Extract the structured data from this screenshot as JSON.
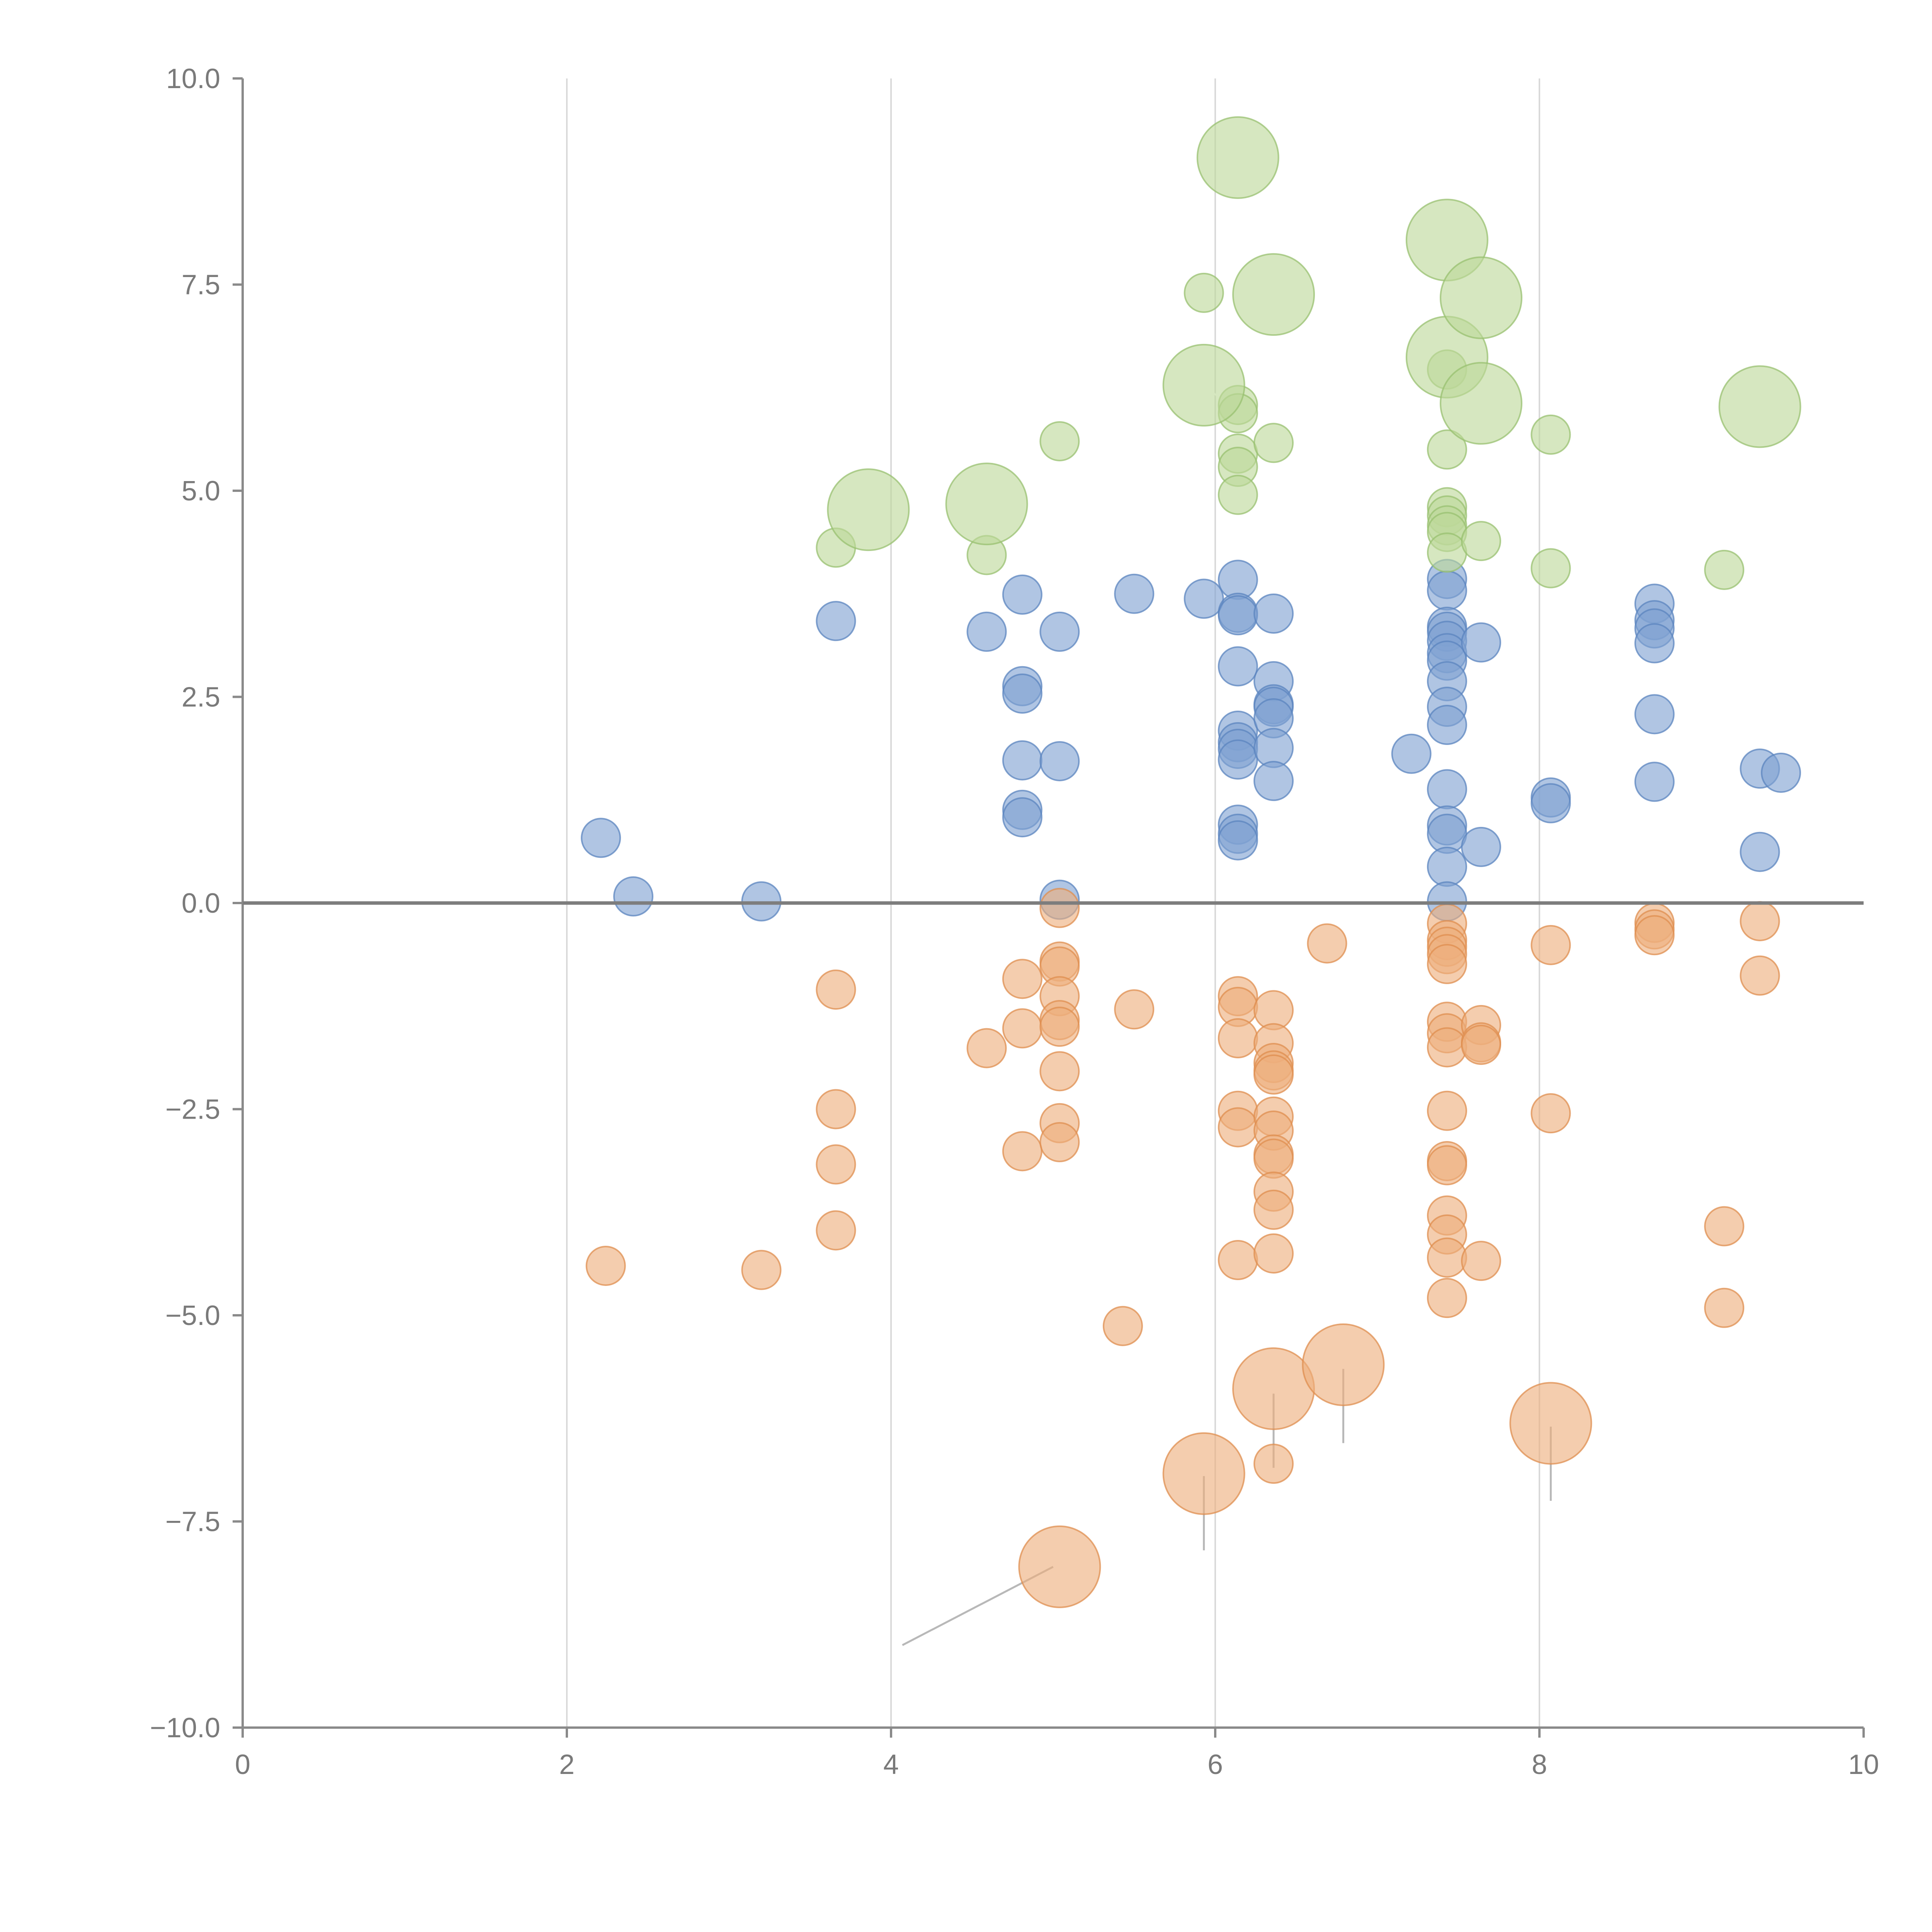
{
  "chart_data": {
    "type": "scatter",
    "title": "",
    "xlabel": "",
    "ylabel": "",
    "xlim": [
      0,
      10
    ],
    "ylim": [
      -10,
      10
    ],
    "x_ticks": [
      0,
      2,
      4,
      6,
      8,
      10
    ],
    "y_ticks": [
      10,
      7.5,
      5,
      2.5,
      0,
      -2.5,
      -5,
      -7.5,
      -10
    ],
    "x_tick_labels": [
      "0",
      "2",
      "4",
      "6",
      "8",
      "10"
    ],
    "y_tick_labels": [
      "10.0",
      "7.5",
      "5.0",
      "2.5",
      "0.0",
      "−2.5",
      "−5.0",
      "−7.5",
      "−10.0"
    ],
    "vertical_grid_at": [
      2,
      4,
      6,
      8
    ],
    "reference_line_y": 0,
    "legend": "none",
    "series": [
      {
        "name": "blue",
        "color": "#7fa2d2",
        "stroke": "#5b84bf",
        "points": [
          [
            2.21,
            0.79,
            1
          ],
          [
            2.41,
            0.08,
            1
          ],
          [
            3.2,
            0.02,
            1
          ],
          [
            3.66,
            3.42,
            1
          ],
          [
            4.59,
            3.29,
            1
          ],
          [
            4.81,
            3.74,
            1
          ],
          [
            4.81,
            2.63,
            1
          ],
          [
            4.81,
            2.54,
            1
          ],
          [
            4.81,
            1.73,
            1
          ],
          [
            4.81,
            1.13,
            1
          ],
          [
            4.81,
            1.04,
            1
          ],
          [
            5.04,
            3.29,
            1
          ],
          [
            5.04,
            1.72,
            1
          ],
          [
            5.04,
            0.04,
            1
          ],
          [
            5.5,
            3.75,
            1
          ],
          [
            5.93,
            3.69,
            1
          ],
          [
            6.14,
            3.92,
            1
          ],
          [
            6.14,
            3.52,
            1
          ],
          [
            6.14,
            3.49,
            1
          ],
          [
            6.14,
            2.87,
            1
          ],
          [
            6.14,
            2.09,
            1
          ],
          [
            6.14,
            1.95,
            1
          ],
          [
            6.14,
            1.87,
            1
          ],
          [
            6.14,
            1.74,
            1
          ],
          [
            6.14,
            0.95,
            1
          ],
          [
            6.14,
            0.84,
            1
          ],
          [
            6.14,
            0.76,
            1
          ],
          [
            6.36,
            3.51,
            1
          ],
          [
            6.36,
            2.69,
            1
          ],
          [
            6.36,
            2.41,
            1
          ],
          [
            6.36,
            2.38,
            1
          ],
          [
            6.36,
            2.24,
            1
          ],
          [
            6.36,
            1.88,
            1
          ],
          [
            6.36,
            1.48,
            1
          ],
          [
            7.21,
            1.81,
            1
          ],
          [
            7.43,
            3.93,
            1
          ],
          [
            7.43,
            3.79,
            1
          ],
          [
            7.43,
            3.35,
            1
          ],
          [
            7.43,
            3.29,
            1
          ],
          [
            7.43,
            3.18,
            1
          ],
          [
            7.43,
            3.03,
            1
          ],
          [
            7.43,
            2.94,
            1
          ],
          [
            7.43,
            2.69,
            1
          ],
          [
            7.43,
            2.38,
            1
          ],
          [
            7.43,
            2.16,
            1
          ],
          [
            7.43,
            1.38,
            1
          ],
          [
            7.43,
            0.94,
            1
          ],
          [
            7.43,
            0.84,
            1
          ],
          [
            7.43,
            0.44,
            1
          ],
          [
            7.43,
            0.02,
            1
          ],
          [
            7.64,
            3.16,
            1
          ],
          [
            7.64,
            0.68,
            1
          ],
          [
            8.07,
            1.28,
            1
          ],
          [
            8.07,
            1.21,
            1
          ],
          [
            8.71,
            3.63,
            1
          ],
          [
            8.71,
            3.43,
            1
          ],
          [
            8.71,
            3.33,
            1
          ],
          [
            8.71,
            3.15,
            1
          ],
          [
            8.71,
            2.29,
            1
          ],
          [
            8.71,
            1.47,
            1
          ],
          [
            9.36,
            1.63,
            1
          ],
          [
            9.36,
            0.62,
            1
          ],
          [
            9.49,
            1.58,
            1
          ]
        ]
      },
      {
        "name": "orange",
        "color": "#edae7c",
        "stroke": "#df8d4f",
        "points": [
          [
            2.24,
            -4.4,
            1
          ],
          [
            3.2,
            -4.45,
            1
          ],
          [
            3.66,
            -1.05,
            1
          ],
          [
            3.66,
            -2.5,
            1
          ],
          [
            3.66,
            -3.17,
            1
          ],
          [
            3.66,
            -3.97,
            1
          ],
          [
            4.59,
            -1.76,
            1
          ],
          [
            4.81,
            -0.92,
            1
          ],
          [
            4.81,
            -1.52,
            1
          ],
          [
            4.81,
            -3.01,
            1
          ],
          [
            5.04,
            -0.06,
            1
          ],
          [
            5.04,
            -0.71,
            1
          ],
          [
            5.04,
            -0.77,
            1
          ],
          [
            5.04,
            -1.13,
            1
          ],
          [
            5.04,
            -1.42,
            1
          ],
          [
            5.04,
            -1.5,
            1
          ],
          [
            5.04,
            -2.04,
            1
          ],
          [
            5.04,
            -2.67,
            1
          ],
          [
            5.04,
            -2.9,
            1
          ],
          [
            5.5,
            -1.29,
            1
          ],
          [
            5.43,
            -5.13,
            1
          ],
          [
            6.14,
            -1.13,
            1
          ],
          [
            6.14,
            -1.26,
            1
          ],
          [
            6.14,
            -1.64,
            1
          ],
          [
            6.14,
            -2.52,
            1
          ],
          [
            6.14,
            -2.72,
            1
          ],
          [
            6.14,
            -4.33,
            1
          ],
          [
            6.36,
            -1.3,
            1
          ],
          [
            6.36,
            -1.7,
            1
          ],
          [
            6.36,
            -1.94,
            1
          ],
          [
            6.36,
            -2.03,
            1
          ],
          [
            6.36,
            -2.08,
            1
          ],
          [
            6.36,
            -2.59,
            1
          ],
          [
            6.36,
            -2.76,
            1
          ],
          [
            6.36,
            -3.05,
            1
          ],
          [
            6.36,
            -3.1,
            1
          ],
          [
            6.36,
            -3.5,
            1
          ],
          [
            6.36,
            -3.72,
            1
          ],
          [
            6.36,
            -4.25,
            1
          ],
          [
            6.36,
            -6.8,
            1
          ],
          [
            6.69,
            -0.49,
            1
          ],
          [
            7.43,
            -0.25,
            1
          ],
          [
            7.43,
            -0.45,
            1
          ],
          [
            7.43,
            -0.53,
            1
          ],
          [
            7.43,
            -0.62,
            1
          ],
          [
            7.43,
            -0.74,
            1
          ],
          [
            7.43,
            -1.44,
            1
          ],
          [
            7.43,
            -1.58,
            1
          ],
          [
            7.43,
            -1.75,
            1
          ],
          [
            7.43,
            -2.52,
            1
          ],
          [
            7.43,
            -3.13,
            1
          ],
          [
            7.43,
            -3.18,
            1
          ],
          [
            7.43,
            -3.79,
            1
          ],
          [
            7.43,
            -4.02,
            1
          ],
          [
            7.43,
            -4.3,
            1
          ],
          [
            7.43,
            -4.79,
            1
          ],
          [
            7.64,
            -1.48,
            1
          ],
          [
            7.64,
            -1.69,
            1
          ],
          [
            7.64,
            -1.72,
            1
          ],
          [
            7.64,
            -4.34,
            1
          ],
          [
            8.07,
            -0.51,
            1
          ],
          [
            8.07,
            -2.55,
            1
          ],
          [
            8.71,
            -0.24,
            1
          ],
          [
            8.71,
            -0.32,
            1
          ],
          [
            8.71,
            -0.39,
            1
          ],
          [
            9.14,
            -3.92,
            1
          ],
          [
            9.14,
            -4.91,
            1
          ],
          [
            9.36,
            -0.22,
            1
          ],
          [
            9.36,
            -0.88,
            1
          ],
          [
            5.04,
            -8.05,
            2.1
          ],
          [
            5.93,
            -6.92,
            2.1
          ],
          [
            6.36,
            -5.89,
            2.1
          ],
          [
            6.79,
            -5.6,
            2.1
          ],
          [
            8.07,
            -6.31,
            2.1
          ]
        ]
      },
      {
        "name": "green",
        "color": "#bdd89a",
        "stroke": "#98c070",
        "points": [
          [
            3.66,
            4.31,
            1
          ],
          [
            4.59,
            4.22,
            1
          ],
          [
            5.04,
            5.6,
            1
          ],
          [
            5.93,
            7.4,
            1
          ],
          [
            6.14,
            6.04,
            1
          ],
          [
            6.14,
            5.94,
            1
          ],
          [
            6.14,
            5.45,
            1
          ],
          [
            6.14,
            5.29,
            1
          ],
          [
            6.14,
            4.95,
            1
          ],
          [
            6.36,
            5.58,
            1
          ],
          [
            7.43,
            6.47,
            1
          ],
          [
            7.43,
            5.5,
            1
          ],
          [
            7.43,
            4.8,
            1
          ],
          [
            7.43,
            4.7,
            1
          ],
          [
            7.43,
            4.58,
            1
          ],
          [
            7.43,
            4.5,
            1
          ],
          [
            7.43,
            4.25,
            1
          ],
          [
            7.64,
            4.39,
            1
          ],
          [
            8.07,
            5.68,
            1
          ],
          [
            8.07,
            4.06,
            1
          ],
          [
            9.14,
            4.04,
            1
          ],
          [
            3.86,
            4.77,
            2.1
          ],
          [
            4.59,
            4.84,
            2.1
          ],
          [
            5.93,
            6.28,
            2.1
          ],
          [
            6.14,
            9.04,
            2.1
          ],
          [
            6.36,
            7.38,
            2.1
          ],
          [
            7.43,
            8.04,
            2.1
          ],
          [
            7.43,
            6.62,
            2.1
          ],
          [
            7.64,
            7.34,
            2.1
          ],
          [
            7.64,
            6.06,
            2.1
          ],
          [
            9.36,
            6.02,
            2.1
          ]
        ]
      }
    ],
    "connectors": [
      {
        "color": "light",
        "from": [
          5.0,
          -8.05
        ],
        "to": [
          4.07,
          -9.0
        ]
      },
      {
        "color": "light",
        "from": [
          5.93,
          -6.95
        ],
        "to": [
          5.93,
          -7.85
        ]
      },
      {
        "color": "light",
        "from": [
          6.36,
          -5.95
        ],
        "to": [
          6.36,
          -6.85
        ]
      },
      {
        "color": "light",
        "from": [
          6.79,
          -5.65
        ],
        "to": [
          6.79,
          -6.55
        ]
      },
      {
        "color": "light",
        "from": [
          8.07,
          -6.35
        ],
        "to": [
          8.07,
          -7.25
        ]
      },
      {
        "color": "white",
        "from": [
          3.9,
          4.85
        ],
        "to": [
          3.81,
          4.5
        ]
      },
      {
        "color": "white",
        "from": [
          4.62,
          4.84
        ],
        "to": [
          4.82,
          4.82
        ]
      },
      {
        "color": "white",
        "from": [
          5.96,
          6.22
        ],
        "to": [
          6.17,
          5.95
        ]
      },
      {
        "color": "white",
        "from": [
          6.18,
          9.05
        ],
        "to": [
          6.37,
          9.08
        ]
      },
      {
        "color": "white",
        "from": [
          6.4,
          7.38
        ],
        "to": [
          6.6,
          7.46
        ]
      },
      {
        "color": "white",
        "from": [
          7.46,
          7.98
        ],
        "to": [
          7.65,
          7.3
        ]
      },
      {
        "color": "white",
        "from": [
          7.7,
          7.35
        ],
        "to": [
          7.85,
          7.6
        ]
      },
      {
        "color": "white",
        "from": [
          7.45,
          6.55
        ],
        "to": [
          7.6,
          5.9
        ]
      },
      {
        "color": "white",
        "from": [
          7.68,
          6.0
        ],
        "to": [
          7.75,
          6.25
        ]
      },
      {
        "color": "white",
        "from": [
          9.37,
          6.1
        ],
        "to": [
          9.33,
          6.45
        ]
      }
    ]
  }
}
